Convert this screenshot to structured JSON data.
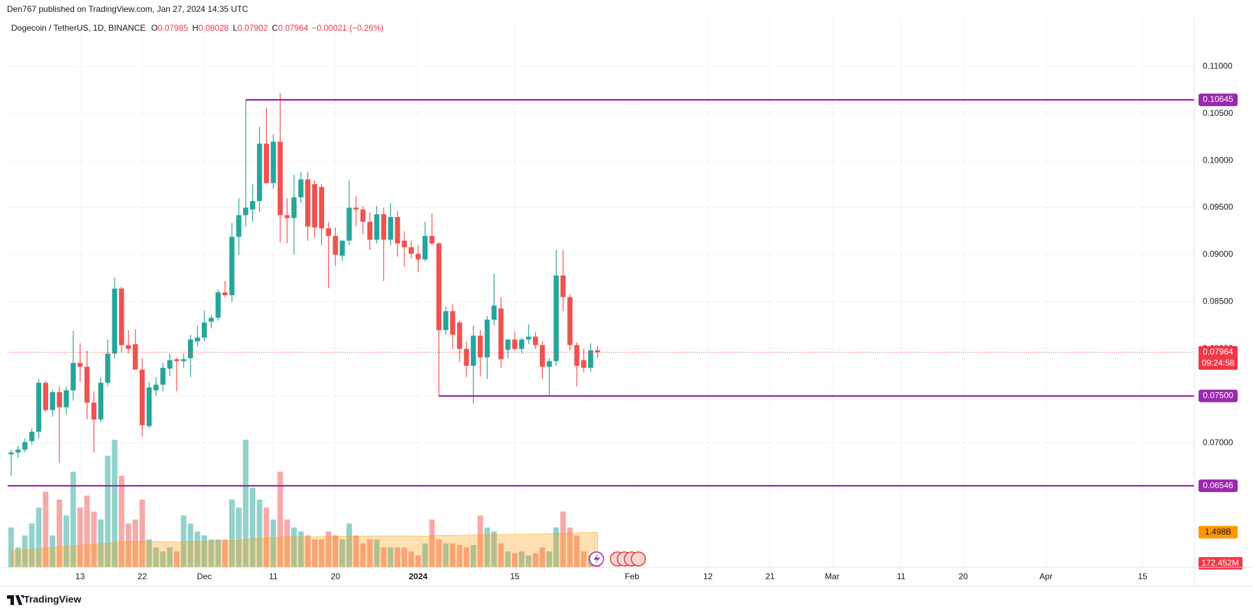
{
  "header": {
    "published": "Den767 published on TradingView.com, Jan 27, 2024 14:35 UTC",
    "symbol": "Dogecoin / TetherUS, 1D, BINANCE",
    "ohlc": [
      {
        "label": "O",
        "value": 0.07985
      },
      {
        "label": "H",
        "value": 0.08028
      },
      {
        "label": "L",
        "value": 0.07902
      },
      {
        "label": "C",
        "value": 0.07964
      }
    ],
    "change": "−0.00021 (−0.26%)"
  },
  "chart_data": {
    "type": "candlestick",
    "colors": {
      "up": "#26a69a",
      "down": "#ef5350"
    },
    "open": [
      0.0688,
      0.069,
      0.0693,
      0.0702,
      0.0712,
      0.0764,
      0.0735,
      0.0754,
      0.0738,
      0.0756,
      0.0785,
      0.0781,
      0.0743,
      0.0725,
      0.0764,
      0.0795,
      0.0864,
      0.0804,
      0.0805,
      0.0778,
      0.0718,
      0.0756,
      0.0762,
      0.0779,
      0.0789,
      0.0787,
      0.079,
      0.0808,
      0.0812,
      0.0829,
      0.0833,
      0.086,
      0.0857,
      0.0919,
      0.0942,
      0.0948,
      0.0957,
      0.1018,
      0.0976,
      0.102,
      0.0942,
      0.0939,
      0.0961,
      0.098,
      0.0975,
      0.0972,
      0.0928,
      0.092,
      0.0899,
      0.0915,
      0.095,
      0.0948,
      0.0935,
      0.0916,
      0.0943,
      0.0916,
      0.094,
      0.0915,
      0.0908,
      0.0901,
      0.0895,
      0.092,
      0.0912,
      0.082,
      0.084,
      0.0828,
      0.08,
      0.0782,
      0.0814,
      0.0791,
      0.0831,
      0.0843,
      0.0799,
      0.081,
      0.08,
      0.081,
      0.0813,
      0.0804,
      0.0781,
      0.0787,
      0.0878,
      0.0855,
      0.0804,
      0.0788,
      0.078,
      0.07985
    ],
    "high": [
      0.0693,
      0.0697,
      0.0705,
      0.0716,
      0.0768,
      0.0766,
      0.0757,
      0.076,
      0.076,
      0.0819,
      0.0806,
      0.0798,
      0.0755,
      0.077,
      0.081,
      0.0876,
      0.0866,
      0.082,
      0.0821,
      0.079,
      0.0765,
      0.077,
      0.0785,
      0.0795,
      0.0791,
      0.0795,
      0.0815,
      0.0825,
      0.0841,
      0.0836,
      0.0863,
      0.0872,
      0.0934,
      0.096,
      0.10645,
      0.0975,
      0.1036,
      0.1056,
      0.1028,
      0.1072,
      0.096,
      0.0985,
      0.0988,
      0.0988,
      0.0979,
      0.0975,
      0.0935,
      0.0929,
      0.0915,
      0.0979,
      0.0962,
      0.0952,
      0.0945,
      0.0952,
      0.095,
      0.0955,
      0.0946,
      0.0925,
      0.0915,
      0.091,
      0.0935,
      0.0944,
      0.0913,
      0.0845,
      0.0848,
      0.083,
      0.0808,
      0.0825,
      0.082,
      0.0835,
      0.088,
      0.0855,
      0.081,
      0.0818,
      0.0812,
      0.0826,
      0.0818,
      0.0808,
      0.079,
      0.0905,
      0.0905,
      0.0858,
      0.0807,
      0.08,
      0.0806,
      0.08028
    ],
    "low": [
      0.0665,
      0.0684,
      0.069,
      0.0698,
      0.0705,
      0.0733,
      0.0728,
      0.0679,
      0.073,
      0.0745,
      0.0765,
      0.0725,
      0.069,
      0.0722,
      0.076,
      0.079,
      0.0796,
      0.0795,
      0.0778,
      0.0707,
      0.0716,
      0.075,
      0.0755,
      0.0771,
      0.0755,
      0.078,
      0.077,
      0.0803,
      0.0808,
      0.0822,
      0.083,
      0.0855,
      0.085,
      0.09,
      0.093,
      0.0935,
      0.0945,
      0.0978,
      0.097,
      0.0913,
      0.0912,
      0.09,
      0.0955,
      0.0915,
      0.0918,
      0.091,
      0.0865,
      0.0888,
      0.0893,
      0.091,
      0.093,
      0.0922,
      0.0905,
      0.0912,
      0.0872,
      0.091,
      0.0898,
      0.0887,
      0.0896,
      0.0882,
      0.0893,
      0.091,
      0.075,
      0.0815,
      0.08,
      0.0786,
      0.077,
      0.0742,
      0.0771,
      0.0768,
      0.0825,
      0.078,
      0.079,
      0.0798,
      0.0795,
      0.0805,
      0.08,
      0.0768,
      0.075,
      0.0782,
      0.084,
      0.0798,
      0.076,
      0.0775,
      0.0776,
      0.07902
    ],
    "close": [
      0.069,
      0.0693,
      0.0701,
      0.0712,
      0.0764,
      0.0735,
      0.0754,
      0.0738,
      0.0756,
      0.0785,
      0.0781,
      0.0743,
      0.0725,
      0.0764,
      0.0795,
      0.0864,
      0.0804,
      0.08,
      0.0778,
      0.0719,
      0.0759,
      0.0762,
      0.078,
      0.0788,
      0.0787,
      0.0789,
      0.081,
      0.0812,
      0.0828,
      0.0833,
      0.086,
      0.0857,
      0.0919,
      0.0942,
      0.095,
      0.0957,
      0.1018,
      0.0976,
      0.102,
      0.0942,
      0.0939,
      0.0961,
      0.098,
      0.093,
      0.0929,
      0.0928,
      0.092,
      0.09,
      0.0915,
      0.095,
      0.0948,
      0.0935,
      0.0916,
      0.0943,
      0.0916,
      0.094,
      0.0912,
      0.0908,
      0.0901,
      0.0895,
      0.092,
      0.0912,
      0.082,
      0.084,
      0.0815,
      0.08,
      0.0782,
      0.0814,
      0.0791,
      0.0831,
      0.0846,
      0.0789,
      0.081,
      0.08,
      0.081,
      0.0813,
      0.0804,
      0.0781,
      0.0787,
      0.0878,
      0.0855,
      0.0804,
      0.0782,
      0.078,
      0.07985,
      0.07964
    ],
    "xlim": [
      -0.5,
      171.5
    ],
    "xticks": [
      {
        "value": 10,
        "label": "13"
      },
      {
        "value": 19,
        "label": "22"
      },
      {
        "value": 28,
        "label": "Dec"
      },
      {
        "value": 38,
        "label": "11"
      },
      {
        "value": 47,
        "label": "20"
      },
      {
        "value": 59,
        "label": "2024"
      },
      {
        "value": 73,
        "label": "15"
      },
      {
        "value": 90,
        "label": "Feb"
      },
      {
        "value": 101,
        "label": "12"
      },
      {
        "value": 110,
        "label": "21"
      },
      {
        "value": 119,
        "label": "Mar"
      },
      {
        "value": 129,
        "label": "11"
      },
      {
        "value": 138,
        "label": "20"
      },
      {
        "value": 150,
        "label": "Apr"
      },
      {
        "value": 164,
        "label": "15"
      }
    ],
    "ylim": [
      0.0568,
      0.1152
    ],
    "yticks": [
      {
        "value": 0.07,
        "label": "0.07000"
      },
      {
        "value": 0.075,
        "label": "0.07500"
      },
      {
        "value": 0.08,
        "label": "0.08000"
      },
      {
        "value": 0.085,
        "label": "0.08500"
      },
      {
        "value": 0.09,
        "label": "0.09000"
      },
      {
        "value": 0.095,
        "label": "0.09500"
      },
      {
        "value": 0.1,
        "label": "0.10000"
      },
      {
        "value": 0.105,
        "label": "0.10500"
      },
      {
        "value": 0.11,
        "label": "0.11000"
      }
    ],
    "grid": true,
    "levels": [
      {
        "value": 0.10645,
        "start": 34,
        "color": "#9c27b0"
      },
      {
        "value": 0.075,
        "label": "0.07500",
        "start": 62,
        "color": "#9c27b0"
      },
      {
        "value": 0.06546,
        "color": "#9c27b0"
      }
    ],
    "last_price": {
      "value": 0.07964,
      "countdown": "09:24:58",
      "color": "#f23645"
    },
    "volume": {
      "values": [
        1700,
        850,
        1360,
        1870,
        2550,
        3230,
        1360,
        2890,
        2210,
        4080,
        2550,
        3060,
        2380,
        2040,
        4760,
        5440,
        3910,
        1870,
        2040,
        2890,
        1190,
        850,
        680,
        850,
        680,
        2210,
        1870,
        1530,
        1360,
        1190,
        1190,
        1190,
        2890,
        2550,
        5440,
        3400,
        2890,
        2550,
        2040,
        4080,
        2040,
        1700,
        1530,
        1360,
        1190,
        1190,
        1530,
        1360,
        1190,
        1870,
        1360,
        1020,
        1190,
        1190,
        850,
        850,
        850,
        850,
        680,
        510,
        1020,
        2040,
        1190,
        1020,
        1020,
        950,
        850,
        950,
        2210,
        1700,
        1530,
        1020,
        680,
        610,
        680,
        510,
        610,
        850,
        680,
        1700,
        2380,
        1700,
        1360,
        680,
        510,
        172.452
      ],
      "last_label": "172.452M",
      "ma": {
        "values": [
          700,
          720,
          740,
          760,
          790,
          820,
          840,
          870,
          890,
          920,
          940,
          960,
          980,
          1000,
          1030,
          1060,
          1080,
          1090,
          1100,
          1110,
          1110,
          1100,
          1090,
          1090,
          1080,
          1090,
          1100,
          1100,
          1110,
          1110,
          1120,
          1120,
          1140,
          1150,
          1200,
          1220,
          1240,
          1250,
          1260,
          1290,
          1290,
          1300,
          1300,
          1300,
          1300,
          1310,
          1310,
          1320,
          1320,
          1330,
          1330,
          1330,
          1330,
          1340,
          1340,
          1340,
          1340,
          1340,
          1340,
          1330,
          1330,
          1350,
          1350,
          1360,
          1360,
          1370,
          1370,
          1380,
          1390,
          1390,
          1400,
          1400,
          1400,
          1410,
          1410,
          1410,
          1420,
          1420,
          1430,
          1440,
          1450,
          1460,
          1470,
          1480,
          1490,
          1498
        ],
        "last_label": "1.498B",
        "color": "#ff9800"
      }
    }
  },
  "footer": {
    "brand": "TradingView"
  }
}
